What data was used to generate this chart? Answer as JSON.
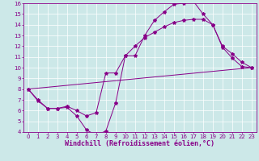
{
  "xlabel": "Windchill (Refroidissement éolien,°C)",
  "bg_color": "#cce8e8",
  "line_color": "#880088",
  "grid_color": "#ffffff",
  "xlim": [
    -0.5,
    23.5
  ],
  "ylim": [
    4,
    16
  ],
  "xticks": [
    0,
    1,
    2,
    3,
    4,
    5,
    6,
    7,
    8,
    9,
    10,
    11,
    12,
    13,
    14,
    15,
    16,
    17,
    18,
    19,
    20,
    21,
    22,
    23
  ],
  "yticks": [
    4,
    5,
    6,
    7,
    8,
    9,
    10,
    11,
    12,
    13,
    14,
    15,
    16
  ],
  "line1_x": [
    0,
    1,
    2,
    3,
    4,
    5,
    6,
    7,
    8,
    9,
    10,
    11,
    12,
    13,
    14,
    15,
    16,
    17,
    18,
    19,
    20,
    21,
    22,
    23
  ],
  "line1_y": [
    8.0,
    7.0,
    6.2,
    6.2,
    6.3,
    5.5,
    4.2,
    3.7,
    4.1,
    6.7,
    11.1,
    11.1,
    13.0,
    14.4,
    15.2,
    15.9,
    16.0,
    16.2,
    15.0,
    14.0,
    11.9,
    10.9,
    10.1,
    10.0
  ],
  "line2_x": [
    0,
    1,
    2,
    3,
    4,
    5,
    6,
    7,
    8,
    9,
    10,
    11,
    12,
    13,
    14,
    15,
    16,
    17,
    18,
    19,
    20,
    21,
    22,
    23
  ],
  "line2_y": [
    8.0,
    6.9,
    6.2,
    6.2,
    6.4,
    6.0,
    5.5,
    5.8,
    9.5,
    9.5,
    11.1,
    12.0,
    12.8,
    13.3,
    13.8,
    14.2,
    14.4,
    14.5,
    14.5,
    14.0,
    12.0,
    11.3,
    10.5,
    10.0
  ],
  "line3_x": [
    0,
    23
  ],
  "line3_y": [
    8.0,
    10.0
  ],
  "fontsize_tick": 5,
  "fontsize_label": 6,
  "markersize": 3
}
